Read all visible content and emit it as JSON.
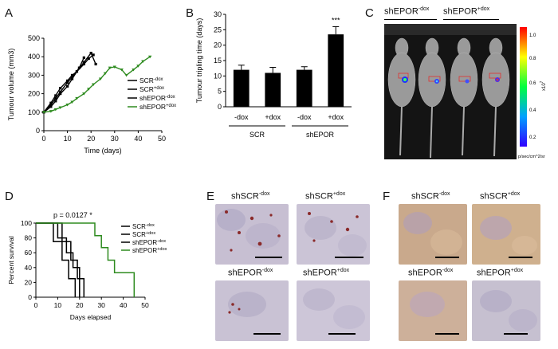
{
  "panels": {
    "a": {
      "letter": "A"
    },
    "b": {
      "letter": "B"
    },
    "c": {
      "letter": "C"
    },
    "d": {
      "letter": "D"
    },
    "e": {
      "letter": "E"
    },
    "f": {
      "letter": "F"
    }
  },
  "chart_data": [
    {
      "panel": "A",
      "type": "line",
      "ylabel": "Tumour volume (mm3)",
      "xlabel": "Time (days)",
      "xlim": [
        0,
        50
      ],
      "ylim": [
        0,
        500
      ],
      "xticks": [
        "0",
        "10",
        "20",
        "30",
        "40",
        "50"
      ],
      "yticks": [
        "0",
        "100",
        "200",
        "300",
        "400",
        "500"
      ],
      "legend_position": "right",
      "series": [
        {
          "name": "SCR-dox",
          "color": "#000000",
          "x": [
            0,
            3,
            5,
            7,
            10,
            12,
            14,
            17,
            19,
            21
          ],
          "y": [
            100,
            150,
            190,
            230,
            270,
            300,
            320,
            360,
            390,
            410
          ]
        },
        {
          "name": "SCR+dox",
          "color": "#000000",
          "x": [
            0,
            3,
            5,
            7,
            10,
            12,
            15,
            17
          ],
          "y": [
            100,
            140,
            175,
            210,
            260,
            290,
            340,
            395
          ]
        },
        {
          "name": "shEPOR-dox",
          "color": "#000000",
          "x": [
            0,
            3,
            5,
            7,
            10,
            12,
            14,
            17,
            20,
            22
          ],
          "y": [
            100,
            130,
            160,
            200,
            240,
            280,
            320,
            370,
            420,
            360
          ]
        },
        {
          "name": "shEPOR+dox",
          "color": "#2e8b1f",
          "x": [
            0,
            3,
            5,
            7,
            10,
            12,
            14,
            17,
            19,
            21,
            24,
            26,
            28,
            30,
            33,
            35,
            38,
            40,
            42,
            45
          ],
          "y": [
            100,
            105,
            115,
            125,
            140,
            155,
            175,
            200,
            225,
            250,
            280,
            310,
            340,
            345,
            330,
            300,
            330,
            350,
            375,
            400
          ]
        }
      ]
    },
    {
      "panel": "B",
      "type": "bar",
      "ylabel": "Tumour tripling time (days)",
      "categories": [
        "-dox",
        "+dox",
        "-dox",
        "+dox"
      ],
      "groups": [
        {
          "label": "SCR",
          "span": [
            0,
            1
          ]
        },
        {
          "label": "shEPOR",
          "span": [
            2,
            3
          ]
        }
      ],
      "values": [
        12,
        11,
        12,
        23.5
      ],
      "errors": [
        1.5,
        1.8,
        1.0,
        2.5
      ],
      "annotation": {
        "index": 3,
        "text": "***"
      },
      "ylim": [
        0,
        30
      ],
      "yticks": [
        "0",
        "5",
        "10",
        "15",
        "20",
        "25",
        "30"
      ]
    },
    {
      "panel": "D",
      "type": "line",
      "ylabel": "Percent survival",
      "xlabel": "Days elapsed",
      "xlim": [
        0,
        50
      ],
      "ylim": [
        0,
        100
      ],
      "xticks": [
        "0",
        "10",
        "20",
        "30",
        "40",
        "50"
      ],
      "yticks": [
        "0",
        "20",
        "40",
        "60",
        "80",
        "100"
      ],
      "pvalue": "p = 0.0127 *",
      "legend_position": "right",
      "series": [
        {
          "name": "SCR-dox",
          "color": "#000000",
          "x": [
            0,
            8,
            8,
            12,
            12,
            15,
            15,
            18,
            18
          ],
          "y": [
            100,
            100,
            75,
            75,
            50,
            50,
            25,
            25,
            0
          ]
        },
        {
          "name": "SCR+dox",
          "color": "#000000",
          "x": [
            0,
            10,
            10,
            14,
            14,
            17,
            17,
            20,
            20
          ],
          "y": [
            100,
            100,
            80,
            80,
            60,
            60,
            40,
            40,
            0
          ]
        },
        {
          "name": "shEPOR-dox",
          "color": "#000000",
          "x": [
            0,
            12,
            12,
            16,
            16,
            19,
            19,
            22,
            22
          ],
          "y": [
            100,
            100,
            75,
            75,
            50,
            50,
            25,
            25,
            0
          ]
        },
        {
          "name": "shEPOR+dox",
          "color": "#2e8b1f",
          "x": [
            0,
            27,
            27,
            30,
            30,
            33,
            33,
            36,
            36,
            45,
            45
          ],
          "y": [
            100,
            100,
            83,
            83,
            67,
            67,
            50,
            50,
            33,
            33,
            0
          ]
        }
      ]
    }
  ],
  "panel_c": {
    "group_labels": [
      {
        "text": "shEPOR",
        "sup": "-dox"
      },
      {
        "text": "shEPOR",
        "sup": "+dox"
      }
    ],
    "colorbar": {
      "ticks": [
        "1.0",
        "0.8",
        "0.6",
        "0.4",
        "0.2"
      ],
      "exponent_label": "x10",
      "exponent": "7",
      "unit": "p/sec/cm^2/sr"
    }
  },
  "panel_e": {
    "labels": [
      {
        "text": "shSCR",
        "sup": "-dox"
      },
      {
        "text": "shSCR",
        "sup": "+dox"
      },
      {
        "text": "shEPOR",
        "sup": "-dox"
      },
      {
        "text": "shEPOR",
        "sup": "+dox"
      }
    ]
  },
  "panel_f": {
    "labels": [
      {
        "text": "shSCR",
        "sup": "-dox"
      },
      {
        "text": "shSCR",
        "sup": "+dox"
      },
      {
        "text": "shEPOR",
        "sup": "-dox"
      },
      {
        "text": "shEPOR",
        "sup": "+dox"
      }
    ]
  }
}
